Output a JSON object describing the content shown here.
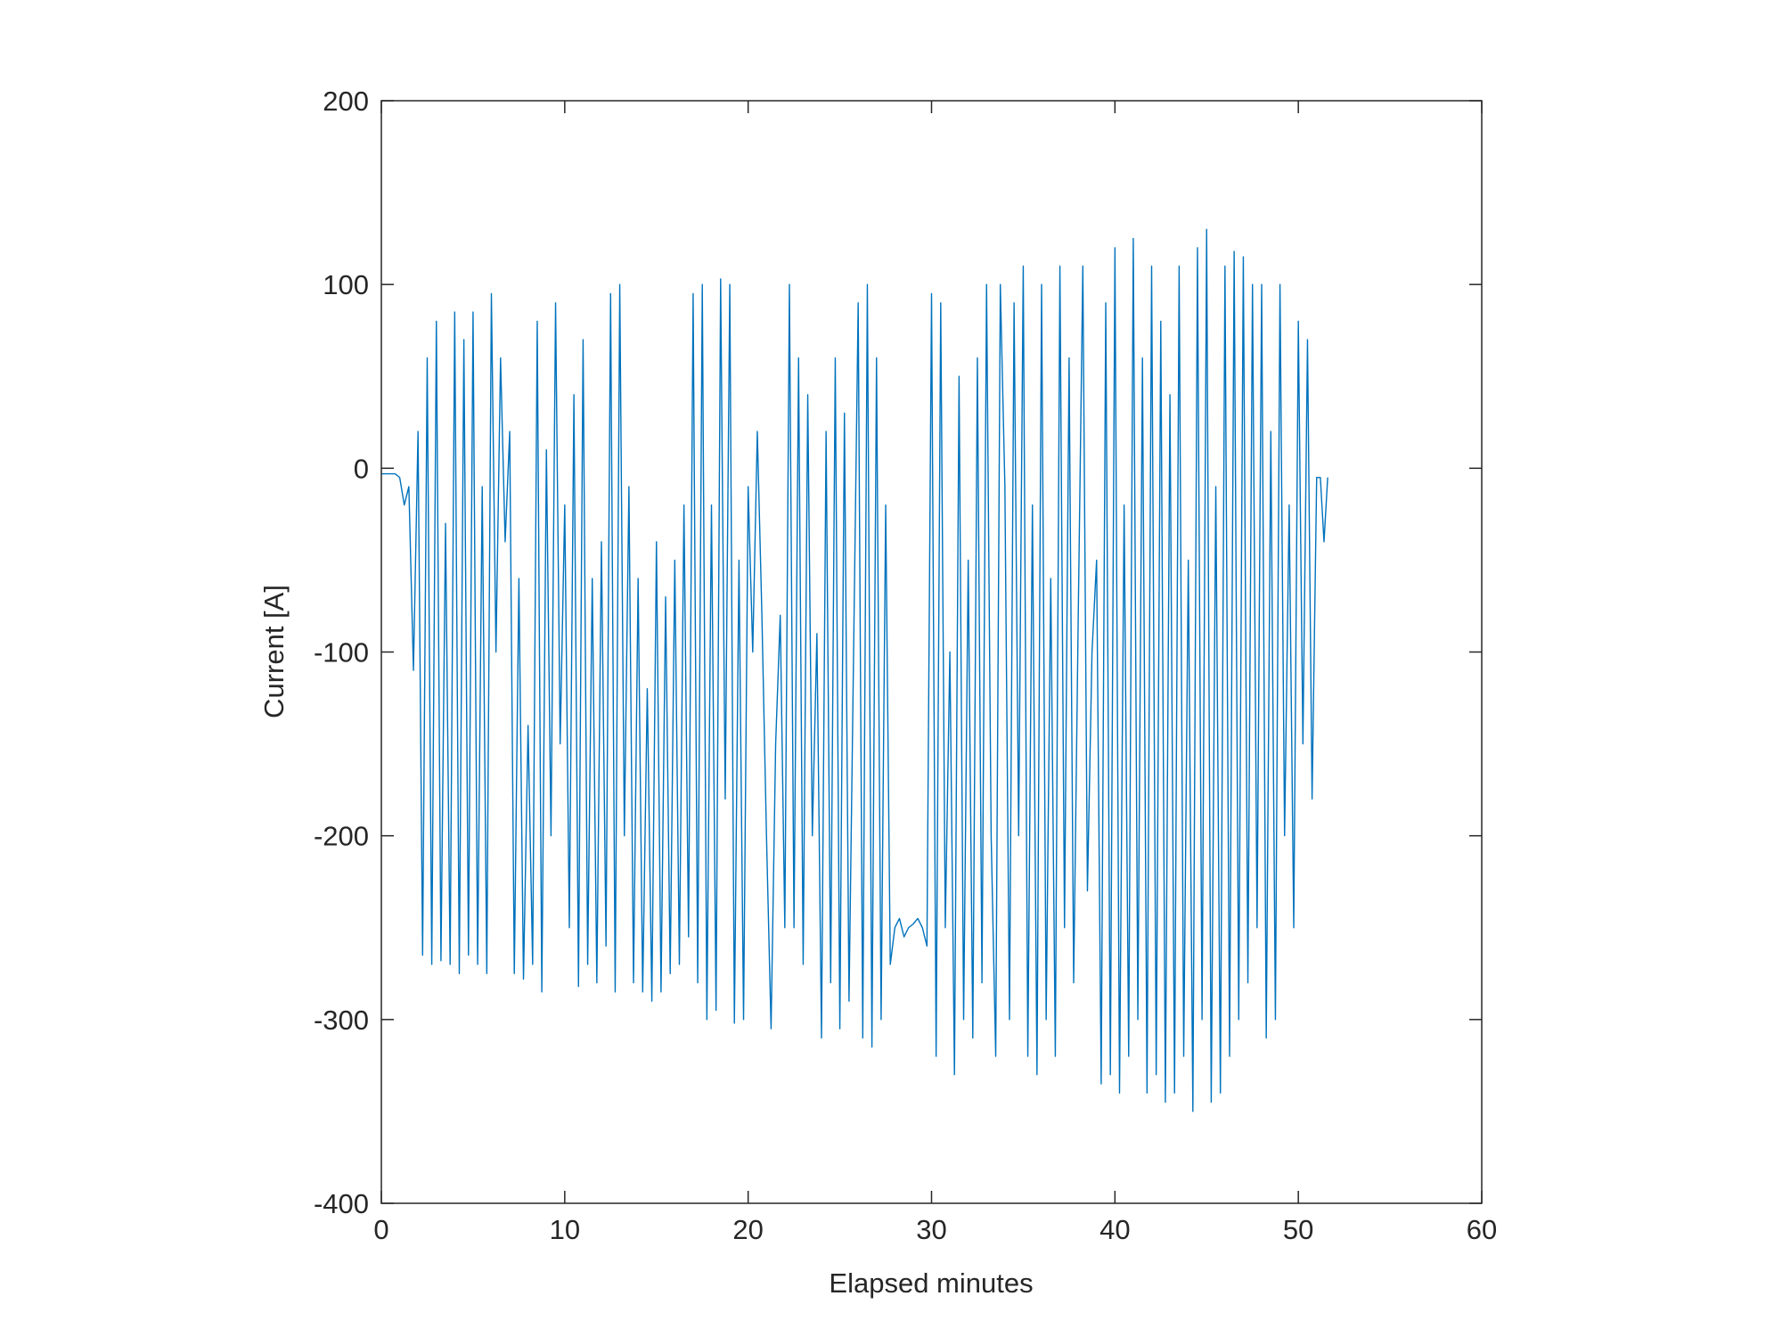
{
  "chart_data": {
    "type": "line",
    "xlabel": "Elapsed minutes",
    "ylabel": "Current [A]",
    "xlim": [
      0,
      60
    ],
    "xticks": [
      0,
      10,
      20,
      30,
      40,
      50,
      60
    ],
    "ylim": [
      -400,
      200
    ],
    "yticks": [
      -400,
      -300,
      -200,
      -100,
      0,
      100,
      200
    ],
    "grid": false,
    "x": [
      0,
      0.25,
      0.5,
      0.75,
      1,
      1.25,
      1.5,
      1.75,
      2,
      2.25,
      2.5,
      2.75,
      3,
      3.25,
      3.5,
      3.75,
      4,
      4.25,
      4.5,
      4.75,
      5,
      5.25,
      5.5,
      5.75,
      6,
      6.25,
      6.5,
      6.75,
      7,
      7.25,
      7.5,
      7.75,
      8,
      8.25,
      8.5,
      8.75,
      9,
      9.25,
      9.5,
      9.75,
      10,
      10.25,
      10.5,
      10.75,
      11,
      11.25,
      11.5,
      11.75,
      12,
      12.25,
      12.5,
      12.75,
      13,
      13.25,
      13.5,
      13.75,
      14,
      14.25,
      14.5,
      14.75,
      15,
      15.25,
      15.5,
      15.75,
      16,
      16.25,
      16.5,
      16.75,
      17,
      17.25,
      17.5,
      17.75,
      18,
      18.25,
      18.5,
      18.75,
      19,
      19.25,
      19.5,
      19.75,
      20,
      20.25,
      20.5,
      20.75,
      21,
      21.25,
      21.5,
      21.75,
      22,
      22.25,
      22.5,
      22.75,
      23,
      23.25,
      23.5,
      23.75,
      24,
      24.25,
      24.5,
      24.75,
      25,
      25.25,
      25.5,
      25.75,
      26,
      26.25,
      26.5,
      26.75,
      27,
      27.25,
      27.5,
      27.75,
      28,
      28.25,
      28.5,
      28.75,
      29,
      29.25,
      29.5,
      29.75,
      30,
      30.25,
      30.5,
      30.75,
      31,
      31.25,
      31.5,
      31.75,
      32,
      32.25,
      32.5,
      32.75,
      33,
      33.25,
      33.5,
      33.75,
      34,
      34.25,
      34.5,
      34.75,
      35,
      35.25,
      35.5,
      35.75,
      36,
      36.25,
      36.5,
      36.75,
      37,
      37.25,
      37.5,
      37.75,
      38,
      38.25,
      38.5,
      38.75,
      39,
      39.25,
      39.5,
      39.75,
      40,
      40.25,
      40.5,
      40.75,
      41,
      41.25,
      41.5,
      41.75,
      42,
      42.25,
      42.5,
      42.75,
      43,
      43.25,
      43.5,
      43.75,
      44,
      44.25,
      44.5,
      44.75,
      45,
      45.25,
      45.5,
      45.75,
      46,
      46.25,
      46.5,
      46.75,
      47,
      47.25,
      47.5,
      47.75,
      48,
      48.25,
      48.5,
      48.75,
      49,
      49.25,
      49.5,
      49.75,
      50,
      50.25,
      50.5,
      50.75,
      51,
      51.2,
      51.4,
      51.6
    ],
    "series": [
      {
        "color": "#0072bd",
        "values": [
          -3,
          -3,
          -3,
          -3,
          -5,
          -20,
          -10,
          -110,
          20,
          -265,
          60,
          -270,
          80,
          -268,
          -30,
          -270,
          85,
          -275,
          70,
          -265,
          85,
          -270,
          -10,
          -275,
          95,
          -100,
          60,
          -40,
          20,
          -275,
          -60,
          -278,
          -140,
          -270,
          80,
          -285,
          10,
          -200,
          90,
          -150,
          -20,
          -250,
          40,
          -282,
          70,
          -270,
          -60,
          -280,
          -40,
          -260,
          95,
          -285,
          100,
          -200,
          -10,
          -280,
          -60,
          -285,
          -120,
          -290,
          -40,
          -285,
          -70,
          -275,
          -50,
          -270,
          -20,
          -255,
          95,
          -280,
          100,
          -300,
          -20,
          -295,
          103,
          -180,
          100,
          -302,
          -50,
          -300,
          -10,
          -100,
          20,
          -80,
          -200,
          -305,
          -150,
          -80,
          -250,
          100,
          -250,
          60,
          -270,
          40,
          -200,
          -90,
          -310,
          20,
          -280,
          60,
          -305,
          30,
          -290,
          -100,
          90,
          -310,
          100,
          -315,
          60,
          -300,
          -20,
          -270,
          -250,
          -245,
          -255,
          -250,
          -248,
          -245,
          -250,
          -260,
          95,
          -320,
          90,
          -250,
          -100,
          -330,
          50,
          -300,
          -50,
          -310,
          60,
          -280,
          100,
          -200,
          -320,
          100,
          -10,
          -300,
          90,
          -200,
          110,
          -320,
          -20,
          -330,
          100,
          -300,
          -60,
          -320,
          110,
          -250,
          60,
          -280,
          -80,
          110,
          -230,
          -100,
          -50,
          -335,
          90,
          -330,
          120,
          -340,
          -20,
          -320,
          125,
          -300,
          60,
          -340,
          110,
          -330,
          80,
          -345,
          40,
          -340,
          110,
          -320,
          -50,
          -350,
          120,
          -300,
          130,
          -345,
          -10,
          -340,
          110,
          -320,
          118,
          -300,
          115,
          -280,
          100,
          -250,
          100,
          -310,
          20,
          -300,
          100,
          -200,
          -20,
          -250,
          80,
          -150,
          70,
          -180,
          -5,
          -5,
          -40,
          -5
        ]
      }
    ]
  }
}
